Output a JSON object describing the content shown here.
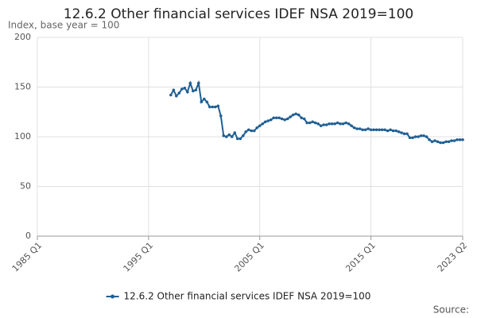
{
  "chart_data": {
    "type": "line",
    "title": "12.6.2 Other financial services IDEF NSA 2019=100",
    "subtitle": "Index, base year = 100",
    "source_label": "Source:",
    "x": [
      1997,
      1997.25,
      1997.5,
      1997.75,
      1998,
      1998.25,
      1998.5,
      1998.75,
      1999,
      1999.25,
      1999.5,
      1999.75,
      2000,
      2000.25,
      2000.5,
      2000.75,
      2001,
      2001.25,
      2001.5,
      2001.75,
      2002,
      2002.25,
      2002.5,
      2002.75,
      2003,
      2003.25,
      2003.5,
      2003.75,
      2004,
      2004.25,
      2004.5,
      2004.75,
      2005,
      2005.25,
      2005.5,
      2005.75,
      2006,
      2006.25,
      2006.5,
      2006.75,
      2007,
      2007.25,
      2007.5,
      2007.75,
      2008,
      2008.25,
      2008.5,
      2008.75,
      2009,
      2009.25,
      2009.5,
      2009.75,
      2010,
      2010.25,
      2010.5,
      2010.75,
      2011,
      2011.25,
      2011.5,
      2011.75,
      2012,
      2012.25,
      2012.5,
      2012.75,
      2013,
      2013.25,
      2013.5,
      2013.75,
      2014,
      2014.25,
      2014.5,
      2014.75,
      2015,
      2015.25,
      2015.5,
      2015.75,
      2016,
      2016.25,
      2016.5,
      2016.75,
      2017,
      2017.25,
      2017.5,
      2017.75,
      2018,
      2018.25,
      2018.5,
      2018.75,
      2019,
      2019.25,
      2019.5,
      2019.75,
      2020,
      2020.25,
      2020.5,
      2020.75,
      2021,
      2021.25,
      2021.5,
      2021.75,
      2022,
      2022.25,
      2022.5,
      2022.75,
      2023,
      2023.25
    ],
    "series": [
      {
        "name": "12.6.2 Other financial services IDEF NSA 2019=100",
        "color": "#206095",
        "values": [
          142,
          147,
          141,
          144,
          148,
          149,
          145,
          154,
          146,
          147,
          154,
          135,
          138,
          135,
          130,
          130,
          130,
          131,
          121,
          101,
          100,
          102,
          100,
          104,
          98,
          98,
          101,
          105,
          107,
          106,
          106,
          109,
          111,
          113,
          115,
          116,
          117,
          119,
          119,
          119,
          118,
          117,
          118,
          120,
          122,
          123,
          122,
          119,
          118,
          114,
          114,
          115,
          114,
          113,
          111,
          112,
          112,
          113,
          113,
          113,
          114,
          113,
          113,
          114,
          113,
          111,
          109,
          108,
          108,
          107,
          107,
          108,
          107,
          107,
          107,
          107,
          107,
          107,
          106,
          107,
          106,
          106,
          105,
          104,
          103,
          103,
          99,
          99,
          100,
          100,
          101,
          101,
          100,
          97,
          95,
          96,
          95,
          94,
          94,
          95,
          95,
          96,
          96,
          97,
          97,
          97
        ]
      }
    ],
    "xlim": [
      1985,
      2023.25
    ],
    "xticks": [
      {
        "value": 1985,
        "label": "1985 Q1"
      },
      {
        "value": 1995,
        "label": "1995 Q1"
      },
      {
        "value": 2005,
        "label": "2005 Q1"
      },
      {
        "value": 2015,
        "label": "2015 Q1"
      },
      {
        "value": 2023.25,
        "label": "2023 Q2"
      }
    ],
    "ylim": [
      0,
      200
    ],
    "yticks": [
      0,
      50,
      100,
      150,
      200
    ],
    "grid": true
  }
}
